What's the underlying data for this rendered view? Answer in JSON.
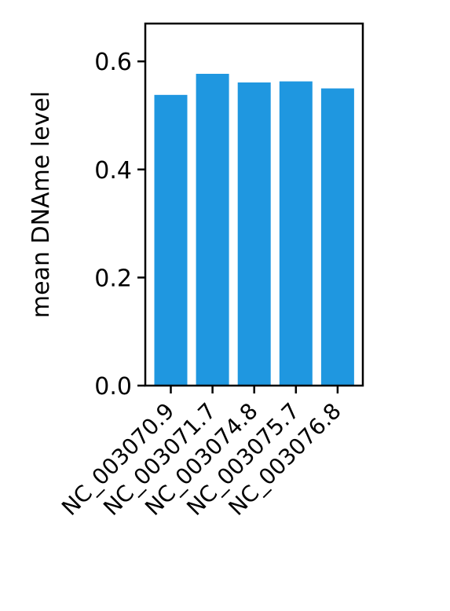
{
  "chart_data": {
    "type": "bar",
    "title": "",
    "xlabel": "",
    "ylabel": "mean DNAme level",
    "categories": [
      "NC_003070.9",
      "NC_003071.7",
      "NC_003074.8",
      "NC_003075.7",
      "NC_003076.8"
    ],
    "values": [
      0.538,
      0.577,
      0.561,
      0.563,
      0.55
    ],
    "ylim": [
      0,
      0.67
    ],
    "yticks": [
      0.0,
      0.2,
      0.4,
      0.6
    ],
    "ytick_labels": [
      "0.0",
      "0.2",
      "0.4",
      "0.6"
    ],
    "grid": false,
    "legend": "none",
    "bar_color": "#1f97e0"
  }
}
